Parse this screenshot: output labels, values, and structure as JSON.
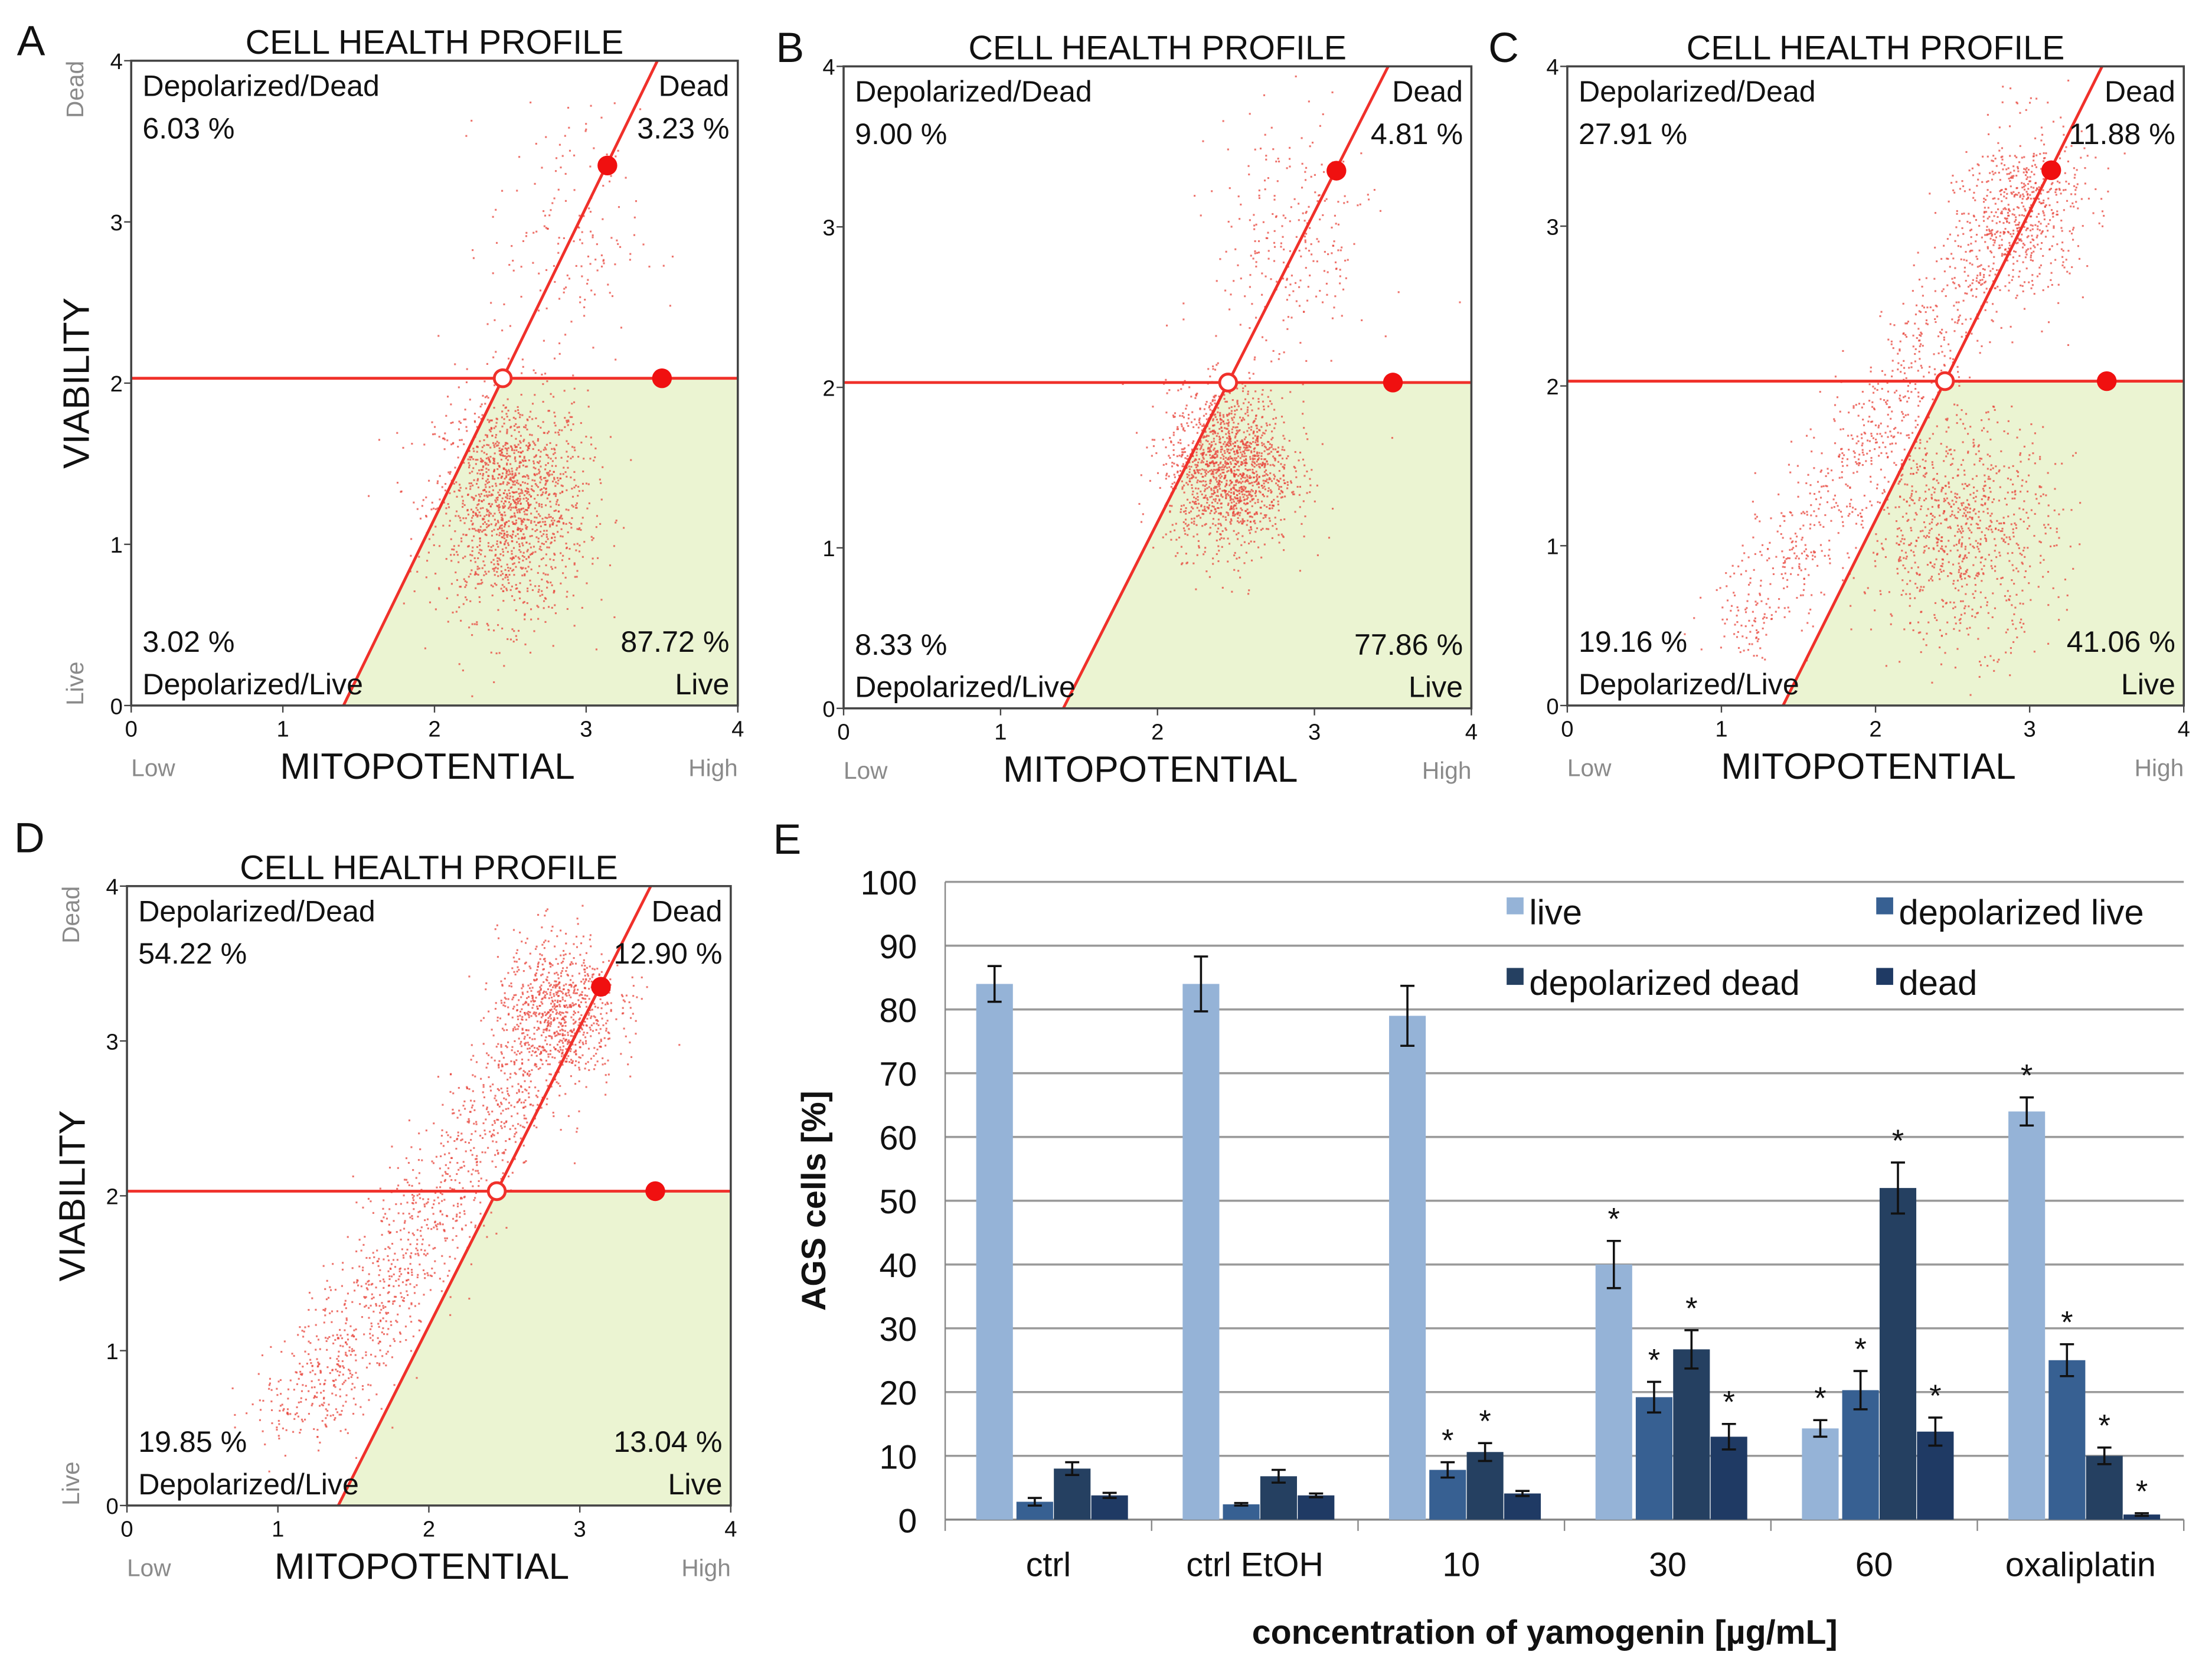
{
  "chart_data": [
    {
      "panel": "A",
      "type": "scatter",
      "title": "CELL HEALTH PROFILE",
      "xlabel": "MITOPOTENTIAL",
      "ylabel": "VIABILITY",
      "x_low": "Low",
      "x_high": "High",
      "y_low": "Live",
      "y_high": "Dead",
      "xlim": [
        0,
        4
      ],
      "ylim": [
        0,
        4
      ],
      "xticks": [
        "0",
        "1",
        "2",
        "3",
        "4"
      ],
      "yticks": [
        "0",
        "1",
        "2",
        "3",
        "4"
      ],
      "gates": {
        "viability_threshold": 2.03,
        "mito_line": [
          [
            1.4,
            0
          ],
          [
            3.47,
            4
          ]
        ],
        "center": [
          2.45,
          2.03
        ]
      },
      "quadrants": {
        "depolarized_dead_label": "Depolarized/Dead",
        "depolarized_dead": "6.03 %",
        "dead_label": "Dead",
        "dead": "3.23 %",
        "depolarized_live": "3.02 %",
        "depolarized_live_label": "Depolarized/Live",
        "live": "87.72 %",
        "live_label": "Live"
      },
      "clusters": [
        {
          "center": [
            2.5,
            1.25
          ],
          "sd": [
            0.25,
            0.35
          ],
          "n": 1500
        },
        {
          "center": [
            2.85,
            2.9
          ],
          "sd": [
            0.25,
            0.4
          ],
          "n": 160
        }
      ]
    },
    {
      "panel": "B",
      "type": "scatter",
      "title": "CELL HEALTH PROFILE",
      "xlabel": "MITOPOTENTIAL",
      "ylabel": "",
      "x_low": "Low",
      "x_high": "High",
      "y_low": "",
      "y_high": "",
      "xlim": [
        0,
        4
      ],
      "ylim": [
        0,
        4
      ],
      "xticks": [
        "0",
        "1",
        "2",
        "3",
        "4"
      ],
      "yticks": [
        "0",
        "1",
        "2",
        "3",
        "4"
      ],
      "gates": {
        "viability_threshold": 2.03,
        "mito_line": [
          [
            1.4,
            0
          ],
          [
            3.47,
            4
          ]
        ],
        "center": [
          2.45,
          2.03
        ]
      },
      "quadrants": {
        "depolarized_dead_label": "Depolarized/Dead",
        "depolarized_dead": "9.00 %",
        "dead_label": "Dead",
        "dead": "4.81 %",
        "depolarized_live": "8.33 %",
        "depolarized_live_label": "Depolarized/Live",
        "live": "77.86 %",
        "live_label": "Live"
      },
      "clusters": [
        {
          "center": [
            2.45,
            1.5
          ],
          "sd": [
            0.2,
            0.25
          ],
          "n": 1500
        },
        {
          "center": [
            2.85,
            2.9
          ],
          "sd": [
            0.25,
            0.4
          ],
          "n": 250
        }
      ]
    },
    {
      "panel": "C",
      "type": "scatter",
      "title": "CELL HEALTH PROFILE",
      "xlabel": "MITOPOTENTIAL",
      "ylabel": "",
      "x_low": "Low",
      "x_high": "High",
      "y_low": "",
      "y_high": "",
      "xlim": [
        0,
        4
      ],
      "ylim": [
        0,
        4
      ],
      "xticks": [
        "0",
        "1",
        "2",
        "3",
        "4"
      ],
      "yticks": [
        "0",
        "1",
        "2",
        "3",
        "4"
      ],
      "gates": {
        "viability_threshold": 2.03,
        "mito_line": [
          [
            1.4,
            0
          ],
          [
            3.47,
            4
          ]
        ],
        "center": [
          2.45,
          2.03
        ]
      },
      "quadrants": {
        "depolarized_dead_label": "Depolarized/Dead",
        "depolarized_dead": "27.91 %",
        "dead_label": "Dead",
        "dead": "11.88 %",
        "depolarized_live": "19.16 %",
        "depolarized_live_label": "Depolarized/Live",
        "live": "41.06 %",
        "live_label": "Live"
      },
      "clusters": [
        {
          "center": [
            2.55,
            1.1
          ],
          "sd": [
            0.3,
            0.35
          ],
          "n": 900
        },
        {
          "band": [
            [
              1.1,
              0.4
            ],
            [
              3.1,
              3.4
            ]
          ],
          "sd": 0.18,
          "n": 900
        },
        {
          "center": [
            2.95,
            3.1
          ],
          "sd": [
            0.2,
            0.3
          ],
          "n": 450
        }
      ]
    },
    {
      "panel": "D",
      "type": "scatter",
      "title": "CELL HEALTH PROFILE",
      "xlabel": "MITOPOTENTIAL",
      "ylabel": "VIABILITY",
      "x_low": "Low",
      "x_high": "High",
      "y_low": "Live",
      "y_high": "Dead",
      "xlim": [
        0,
        4
      ],
      "ylim": [
        0,
        4
      ],
      "xticks": [
        "0",
        "1",
        "2",
        "3",
        "4"
      ],
      "yticks": [
        "0",
        "1",
        "2",
        "3",
        "4"
      ],
      "gates": {
        "viability_threshold": 2.03,
        "mito_line": [
          [
            1.4,
            0
          ],
          [
            3.47,
            4
          ]
        ],
        "center": [
          2.45,
          2.03
        ]
      },
      "quadrants": {
        "depolarized_dead_label": "Depolarized/Dead",
        "depolarized_dead": "54.22 %",
        "dead_label": "Dead",
        "dead": "12.90 %",
        "depolarized_live": "19.85 %",
        "depolarized_live_label": "Depolarized/Live",
        "live": "13.04 %",
        "live_label": "Live"
      },
      "clusters": [
        {
          "band": [
            [
              1.1,
              0.5
            ],
            [
              3.0,
              3.4
            ]
          ],
          "sd": 0.2,
          "n": 1300
        },
        {
          "center": [
            2.85,
            3.2
          ],
          "sd": [
            0.2,
            0.25
          ],
          "n": 650
        }
      ]
    },
    {
      "panel": "E",
      "type": "bar",
      "xlabel": "concentration of yamogenin [µg/mL]",
      "ylabel": "AGS cells [%]",
      "ylim": [
        0,
        100
      ],
      "yticks": [
        "0",
        "10",
        "20",
        "30",
        "40",
        "50",
        "60",
        "70",
        "80",
        "90",
        "100"
      ],
      "grid": true,
      "legend_placement": "top-right",
      "categories": [
        "ctrl",
        "ctrl EtOH",
        "10",
        "30",
        "60",
        "oxaliplatin"
      ],
      "series": [
        {
          "name": "live",
          "color": "#95b3d7",
          "values": [
            84,
            84,
            79,
            40,
            14.3,
            64
          ],
          "errors": [
            2.8,
            4.3,
            4.7,
            3.7,
            1.3,
            2.2
          ],
          "significant": [
            false,
            false,
            false,
            true,
            true,
            true
          ]
        },
        {
          "name": "depolarized live",
          "color": "#376092",
          "values": [
            2.8,
            2.4,
            7.8,
            19.2,
            20.3,
            25
          ],
          "errors": [
            0.6,
            0.2,
            1.2,
            2.4,
            3,
            2.5
          ],
          "significant": [
            false,
            false,
            true,
            true,
            true,
            true
          ]
        },
        {
          "name": "depolarized dead",
          "color": "#254061",
          "values": [
            8,
            6.8,
            10.6,
            26.7,
            52,
            10
          ],
          "errors": [
            1,
            1,
            1.4,
            3,
            4,
            1.3
          ],
          "significant": [
            false,
            false,
            true,
            true,
            true,
            true
          ]
        },
        {
          "name": "dead",
          "color": "#1f3a64",
          "values": [
            3.8,
            3.8,
            4.1,
            13,
            13.8,
            0.8
          ],
          "errors": [
            0.4,
            0.3,
            0.4,
            2,
            2.2,
            0.2
          ],
          "significant": [
            false,
            false,
            false,
            true,
            true,
            true
          ]
        }
      ],
      "significance_mark": "*"
    }
  ]
}
